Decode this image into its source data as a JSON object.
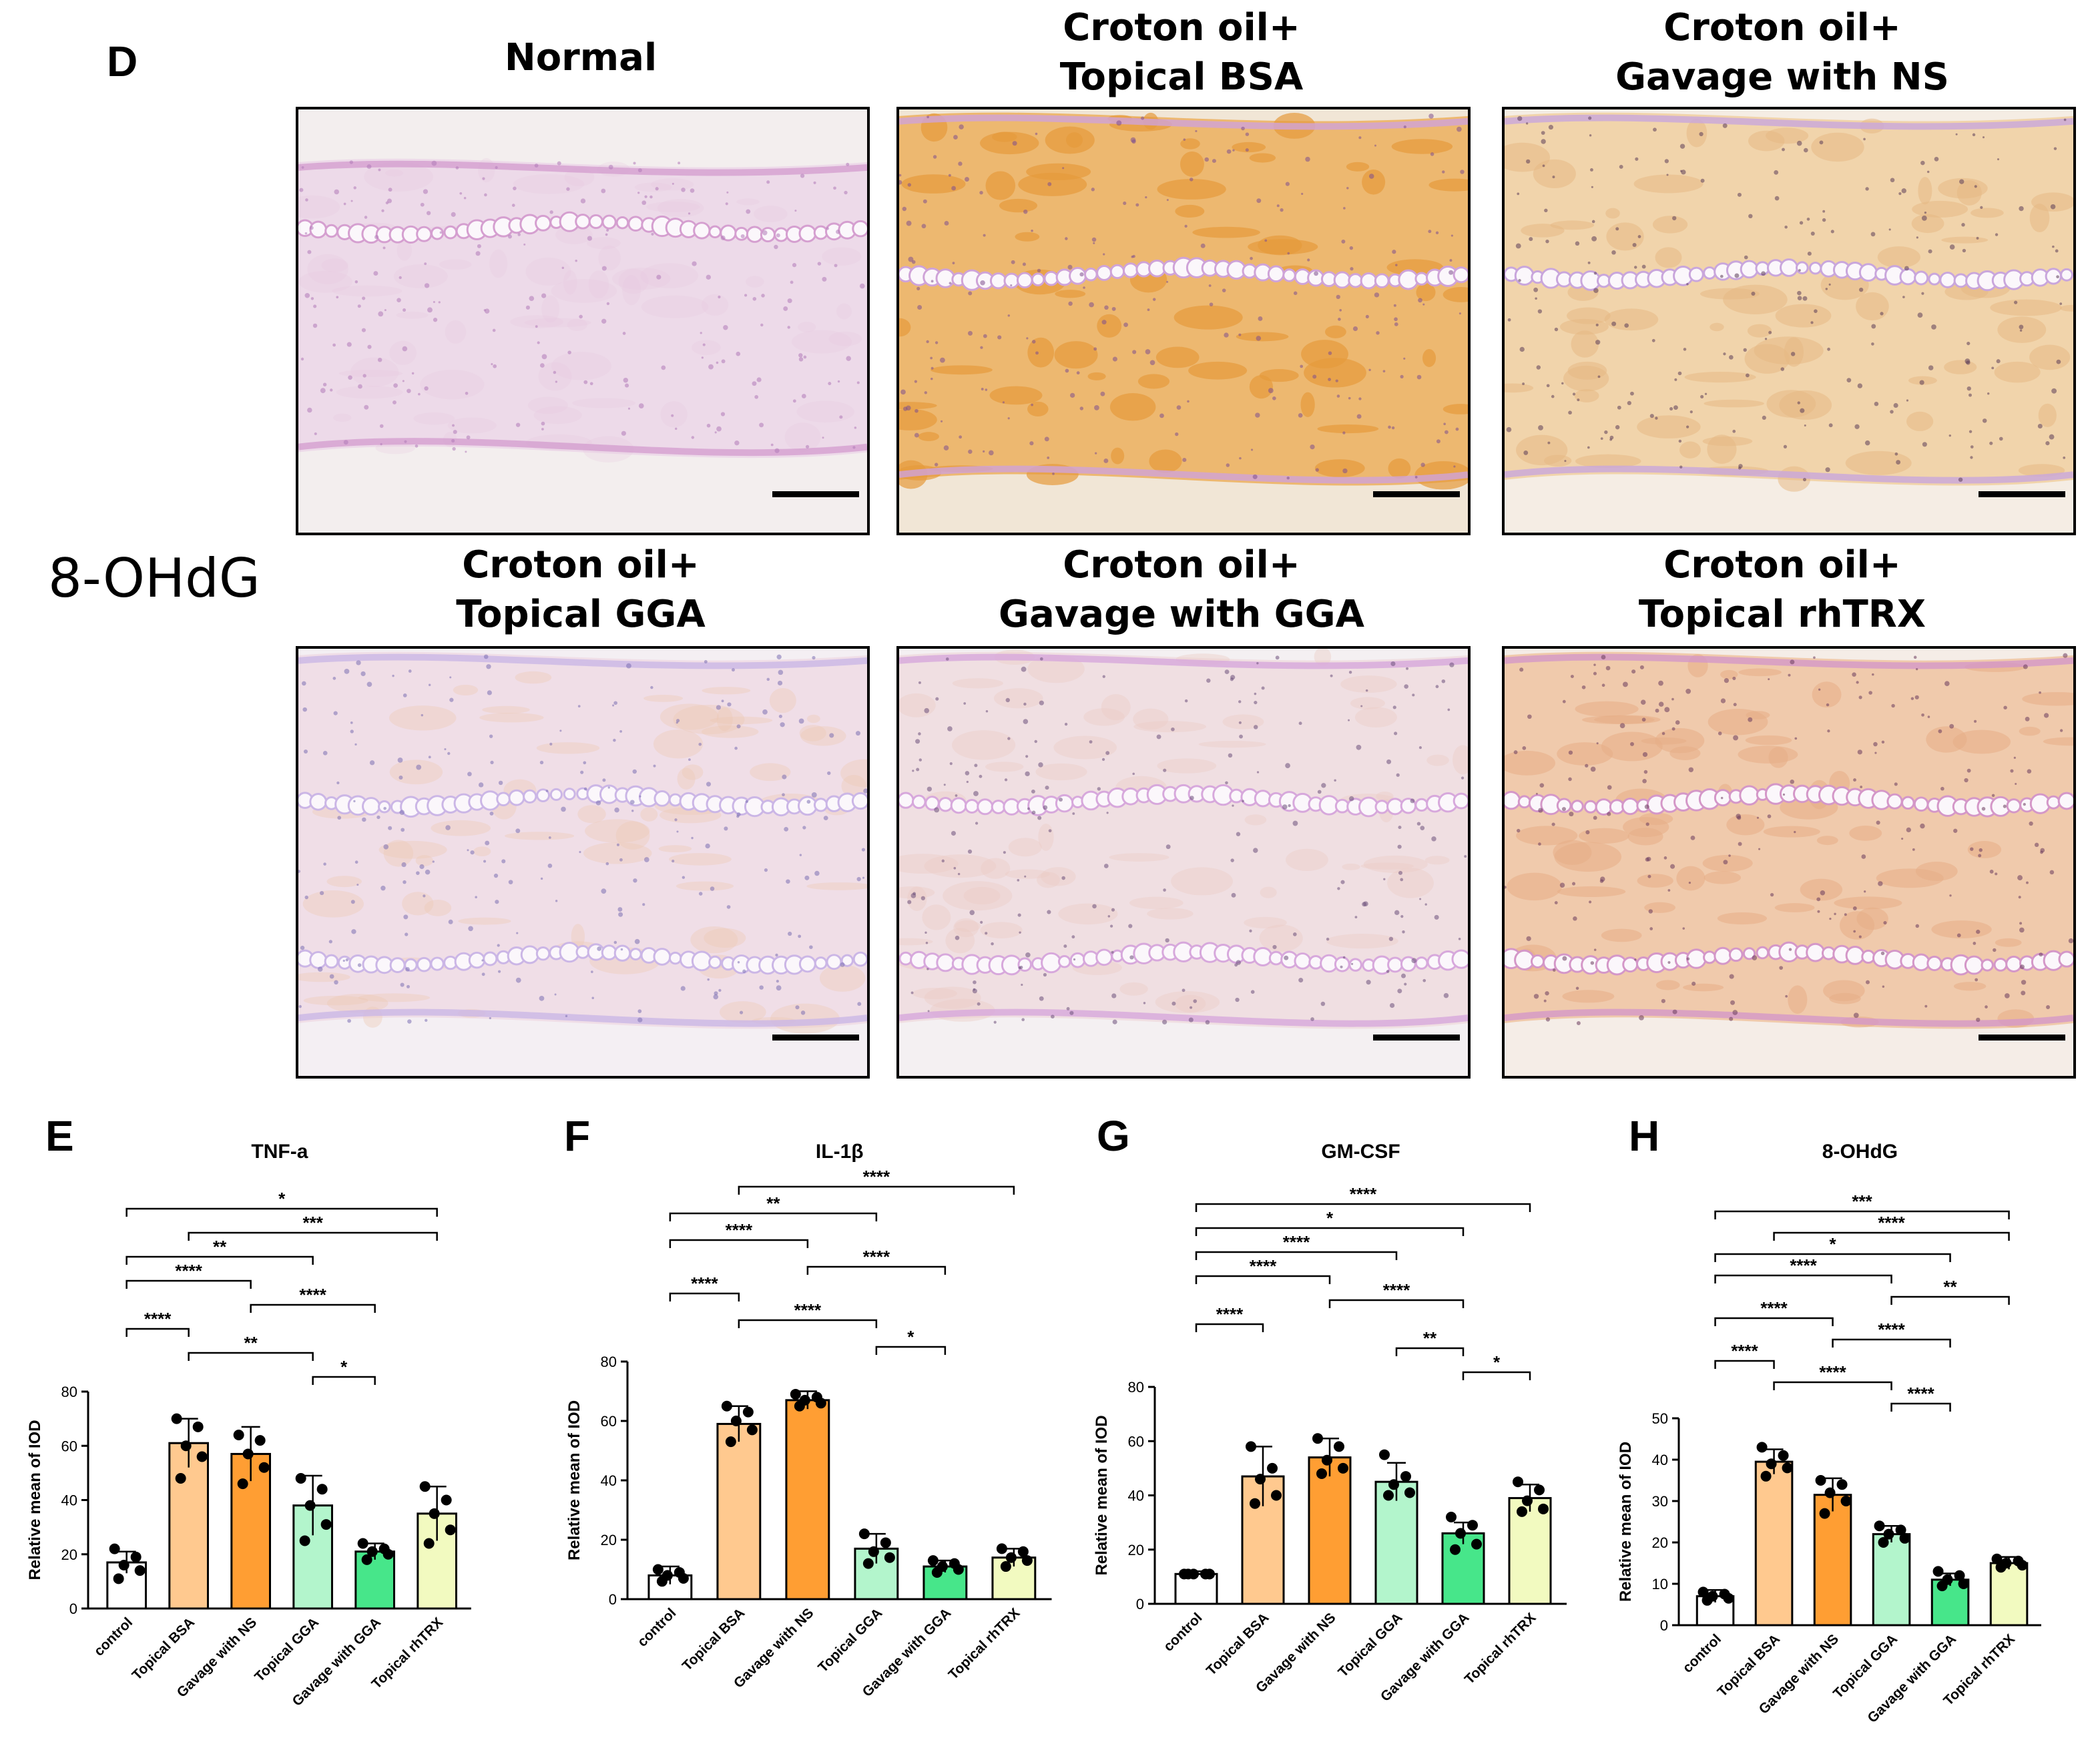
{
  "figure": {
    "panel_D_letter": "D",
    "marker_label": "8-OHdG",
    "micrographs": [
      {
        "title_line1": "Normal",
        "title_line2": "",
        "stain": "normal"
      },
      {
        "title_line1": "Croton oil+",
        "title_line2": "Topical  BSA",
        "stain": "heavy"
      },
      {
        "title_line1": "Croton oil+",
        "title_line2": "Gavage with NS",
        "stain": "medium"
      },
      {
        "title_line1": "Croton oil+",
        "title_line2": "Topical  GGA",
        "stain": "light"
      },
      {
        "title_line1": "Croton oil+",
        "title_line2": "Gavage with GGA",
        "stain": "light2"
      },
      {
        "title_line1": "Croton oil+",
        "title_line2": "Topical  rhTRX",
        "stain": "medium2"
      }
    ],
    "colors": {
      "control": "#ffffff",
      "topical_bsa": "#ffc98f",
      "gavage_ns": "#ff9e33",
      "topical_gga": "#b3f5cc",
      "gavage_gga": "#47e68a",
      "topical_rhtrx": "#f2fac0"
    }
  },
  "chart_data": [
    {
      "panel": "E",
      "type": "bar",
      "title": "TNF-a",
      "ylabel": "Relative mean of IOD",
      "categories": [
        "control",
        "Topical BSA",
        "Gavage with NS",
        "Topical GGA",
        "Gavage with GGA",
        "Topical rhTRX"
      ],
      "values": [
        17,
        61,
        57,
        38,
        21,
        35
      ],
      "errors": [
        4,
        9,
        10,
        11,
        3,
        10
      ],
      "points": [
        [
          22,
          19,
          16,
          14,
          11
        ],
        [
          70,
          67,
          60,
          56,
          48
        ],
        [
          64,
          62,
          57,
          52,
          46
        ],
        [
          48,
          44,
          38,
          31,
          25
        ],
        [
          24,
          22,
          21,
          20,
          18
        ],
        [
          45,
          40,
          35,
          29,
          24
        ]
      ],
      "ylim": [
        0,
        80
      ],
      "yticks": [
        0,
        20,
        40,
        60,
        80
      ],
      "significance": [
        {
          "from": 0,
          "to": 5,
          "label": "*"
        },
        {
          "from": 1,
          "to": 5,
          "label": "***"
        },
        {
          "from": 0,
          "to": 3,
          "label": "**"
        },
        {
          "from": 0,
          "to": 2,
          "label": "****"
        },
        {
          "from": 2,
          "to": 4,
          "label": "****"
        },
        {
          "from": 0,
          "to": 1,
          "label": "****"
        },
        {
          "from": 1,
          "to": 3,
          "label": "**"
        },
        {
          "from": 3,
          "to": 4,
          "label": "*"
        }
      ]
    },
    {
      "panel": "F",
      "type": "bar",
      "title": "IL-1β",
      "ylabel": "Relative mean of IOD",
      "categories": [
        "control",
        "Topical BSA",
        "Gavage with NS",
        "Topical GGA",
        "Gavage with GGA",
        "Topical rhTRX"
      ],
      "values": [
        8,
        59,
        67,
        17,
        11,
        14
      ],
      "errors": [
        3,
        6,
        3,
        5,
        2,
        3
      ],
      "points": [
        [
          10,
          9,
          8,
          7,
          6
        ],
        [
          65,
          63,
          60,
          57,
          53
        ],
        [
          69,
          68,
          67,
          66,
          65
        ],
        [
          22,
          19,
          16,
          14,
          12
        ],
        [
          13,
          12,
          11,
          10,
          9
        ],
        [
          17,
          16,
          14,
          13,
          11
        ]
      ],
      "ylim": [
        0,
        80
      ],
      "yticks": [
        0,
        20,
        40,
        60,
        80
      ],
      "significance": [
        {
          "from": 1,
          "to": 5,
          "label": "****"
        },
        {
          "from": 0,
          "to": 3,
          "label": "**"
        },
        {
          "from": 0,
          "to": 2,
          "label": "****"
        },
        {
          "from": 2,
          "to": 4,
          "label": "****"
        },
        {
          "from": 0,
          "to": 1,
          "label": "****"
        },
        {
          "from": 1,
          "to": 3,
          "label": "****"
        },
        {
          "from": 3,
          "to": 4,
          "label": "*"
        }
      ]
    },
    {
      "panel": "G",
      "type": "bar",
      "title": "GM-CSF",
      "ylabel": "Relative mean of IOD",
      "categories": [
        "control",
        "Topical BSA",
        "Gavage with NS",
        "Topical GGA",
        "Gavage with GGA",
        "Topical rhTRX"
      ],
      "values": [
        11,
        47,
        54,
        45,
        26,
        39
      ],
      "errors": [
        1,
        11,
        7,
        7,
        4,
        5
      ],
      "points": [
        [
          11,
          11,
          11,
          11,
          11
        ],
        [
          58,
          50,
          46,
          40,
          37
        ],
        [
          61,
          58,
          53,
          50,
          48
        ],
        [
          55,
          47,
          44,
          41,
          40
        ],
        [
          32,
          29,
          26,
          22,
          20
        ],
        [
          45,
          42,
          38,
          35,
          34
        ]
      ],
      "ylim": [
        0,
        80
      ],
      "yticks": [
        0,
        20,
        40,
        60,
        80
      ],
      "significance": [
        {
          "from": 0,
          "to": 5,
          "label": "****"
        },
        {
          "from": 0,
          "to": 4,
          "label": "*"
        },
        {
          "from": 0,
          "to": 3,
          "label": "****"
        },
        {
          "from": 0,
          "to": 2,
          "label": "****"
        },
        {
          "from": 2,
          "to": 4,
          "label": "****"
        },
        {
          "from": 0,
          "to": 1,
          "label": "****"
        },
        {
          "from": 3,
          "to": 4,
          "label": "**"
        },
        {
          "from": 4,
          "to": 5,
          "label": "*"
        }
      ]
    },
    {
      "panel": "H",
      "type": "bar",
      "title": "8-OHdG",
      "ylabel": "Relative mean of IOD",
      "categories": [
        "control",
        "Topical BSA",
        "Gavage with NS",
        "Topical GGA",
        "Gavage with GGA",
        "Topical rhTRX"
      ],
      "values": [
        7,
        39.5,
        31.5,
        22,
        11,
        15
      ],
      "errors": [
        1.5,
        3,
        4,
        2,
        1.5,
        1.5
      ],
      "points": [
        [
          8,
          7.5,
          7,
          6.5,
          6
        ],
        [
          43,
          41,
          39,
          38,
          36
        ],
        [
          35,
          34,
          32,
          30,
          27
        ],
        [
          24,
          23,
          22,
          21,
          20
        ],
        [
          13,
          12,
          11,
          10,
          9.5
        ],
        [
          16,
          15.5,
          15,
          14.5,
          14
        ]
      ],
      "ylim": [
        0,
        50
      ],
      "yticks": [
        0,
        10,
        20,
        30,
        40,
        50
      ],
      "significance": [
        {
          "from": 0,
          "to": 5,
          "label": "***"
        },
        {
          "from": 1,
          "to": 5,
          "label": "****"
        },
        {
          "from": 0,
          "to": 4,
          "label": "*"
        },
        {
          "from": 0,
          "to": 3,
          "label": "****"
        },
        {
          "from": 3,
          "to": 5,
          "label": "**"
        },
        {
          "from": 0,
          "to": 2,
          "label": "****"
        },
        {
          "from": 2,
          "to": 4,
          "label": "****"
        },
        {
          "from": 0,
          "to": 1,
          "label": "****"
        },
        {
          "from": 1,
          "to": 3,
          "label": "****"
        },
        {
          "from": 3,
          "to": 4,
          "label": "****"
        }
      ]
    }
  ]
}
